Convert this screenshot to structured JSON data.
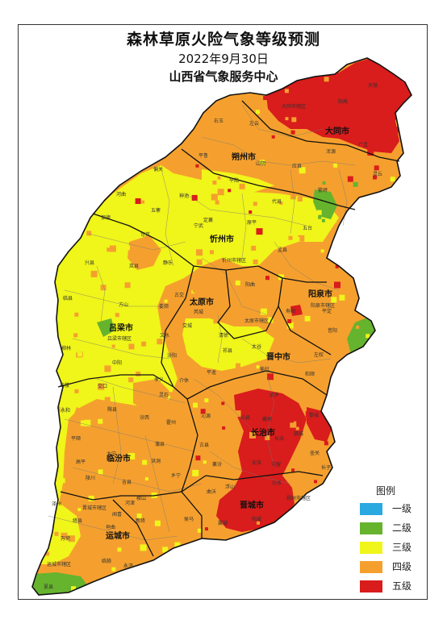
{
  "title": "森林草原火险气象等级预测",
  "date": "2022年9月30日",
  "agency": "山西省气象服务中心",
  "legend": {
    "title": "图例",
    "items": [
      {
        "label": "一级",
        "color": "#29a9e0"
      },
      {
        "label": "二级",
        "color": "#66b32e"
      },
      {
        "label": "三级",
        "color": "#f0f51a"
      },
      {
        "label": "四级",
        "color": "#f5a02e"
      },
      {
        "label": "五级",
        "color": "#d91c1c"
      }
    ]
  },
  "cities": [
    "大同市",
    "朔州市",
    "忻州市",
    "阳泉市",
    "太原市",
    "吕梁市",
    "晋中市",
    "长治市",
    "临汾市",
    "晋城市",
    "运城市"
  ],
  "counties": [
    "天镇",
    "阳高",
    "大同市辖区",
    "左云",
    "右玉",
    "平鲁",
    "山阴",
    "应县",
    "浑源",
    "广灵",
    "灵丘",
    "繁峙",
    "代县",
    "五台",
    "偏关",
    "河曲",
    "保德",
    "五寨",
    "神池",
    "宁武",
    "原平",
    "定襄",
    "孟县",
    "平定",
    "岢岚",
    "兴县",
    "岚县",
    "静乐",
    "忻州市辖区",
    "阳曲",
    "古交",
    "娄烦",
    "阳泉市辖区",
    "临县",
    "方山",
    "交城",
    "清徐",
    "寿阳",
    "昔阳",
    "柳林",
    "吕梁市辖区",
    "文水",
    "汾阳",
    "祁县",
    "太谷",
    "榆社",
    "左权",
    "和顺",
    "石楼",
    "中阳",
    "孝义",
    "介休",
    "平遥",
    "交口",
    "灵石",
    "沁源",
    "武乡",
    "黎城",
    "永和",
    "隰县",
    "汾西",
    "霍州",
    "沁县",
    "襄垣",
    "潞城",
    "长治",
    "壶关",
    "平顺",
    "大宁",
    "蒲县",
    "洪洞",
    "古县",
    "安泽",
    "屯留",
    "长子",
    "高平",
    "陵川",
    "吉县",
    "乡宁",
    "襄汾",
    "浮山",
    "翼城",
    "沁水",
    "阳城",
    "泽州",
    "晋城市辖区",
    "河津",
    "稷山",
    "新绛",
    "侯马",
    "曲沃",
    "绛县",
    "垣曲",
    "万荣",
    "闻喜",
    "临猗",
    "运城市辖区",
    "夏县",
    "永济",
    "芮城",
    "平陆",
    "太原市辖区",
    "朔州市辖区",
    "榆次",
    "阳城县"
  ]
}
